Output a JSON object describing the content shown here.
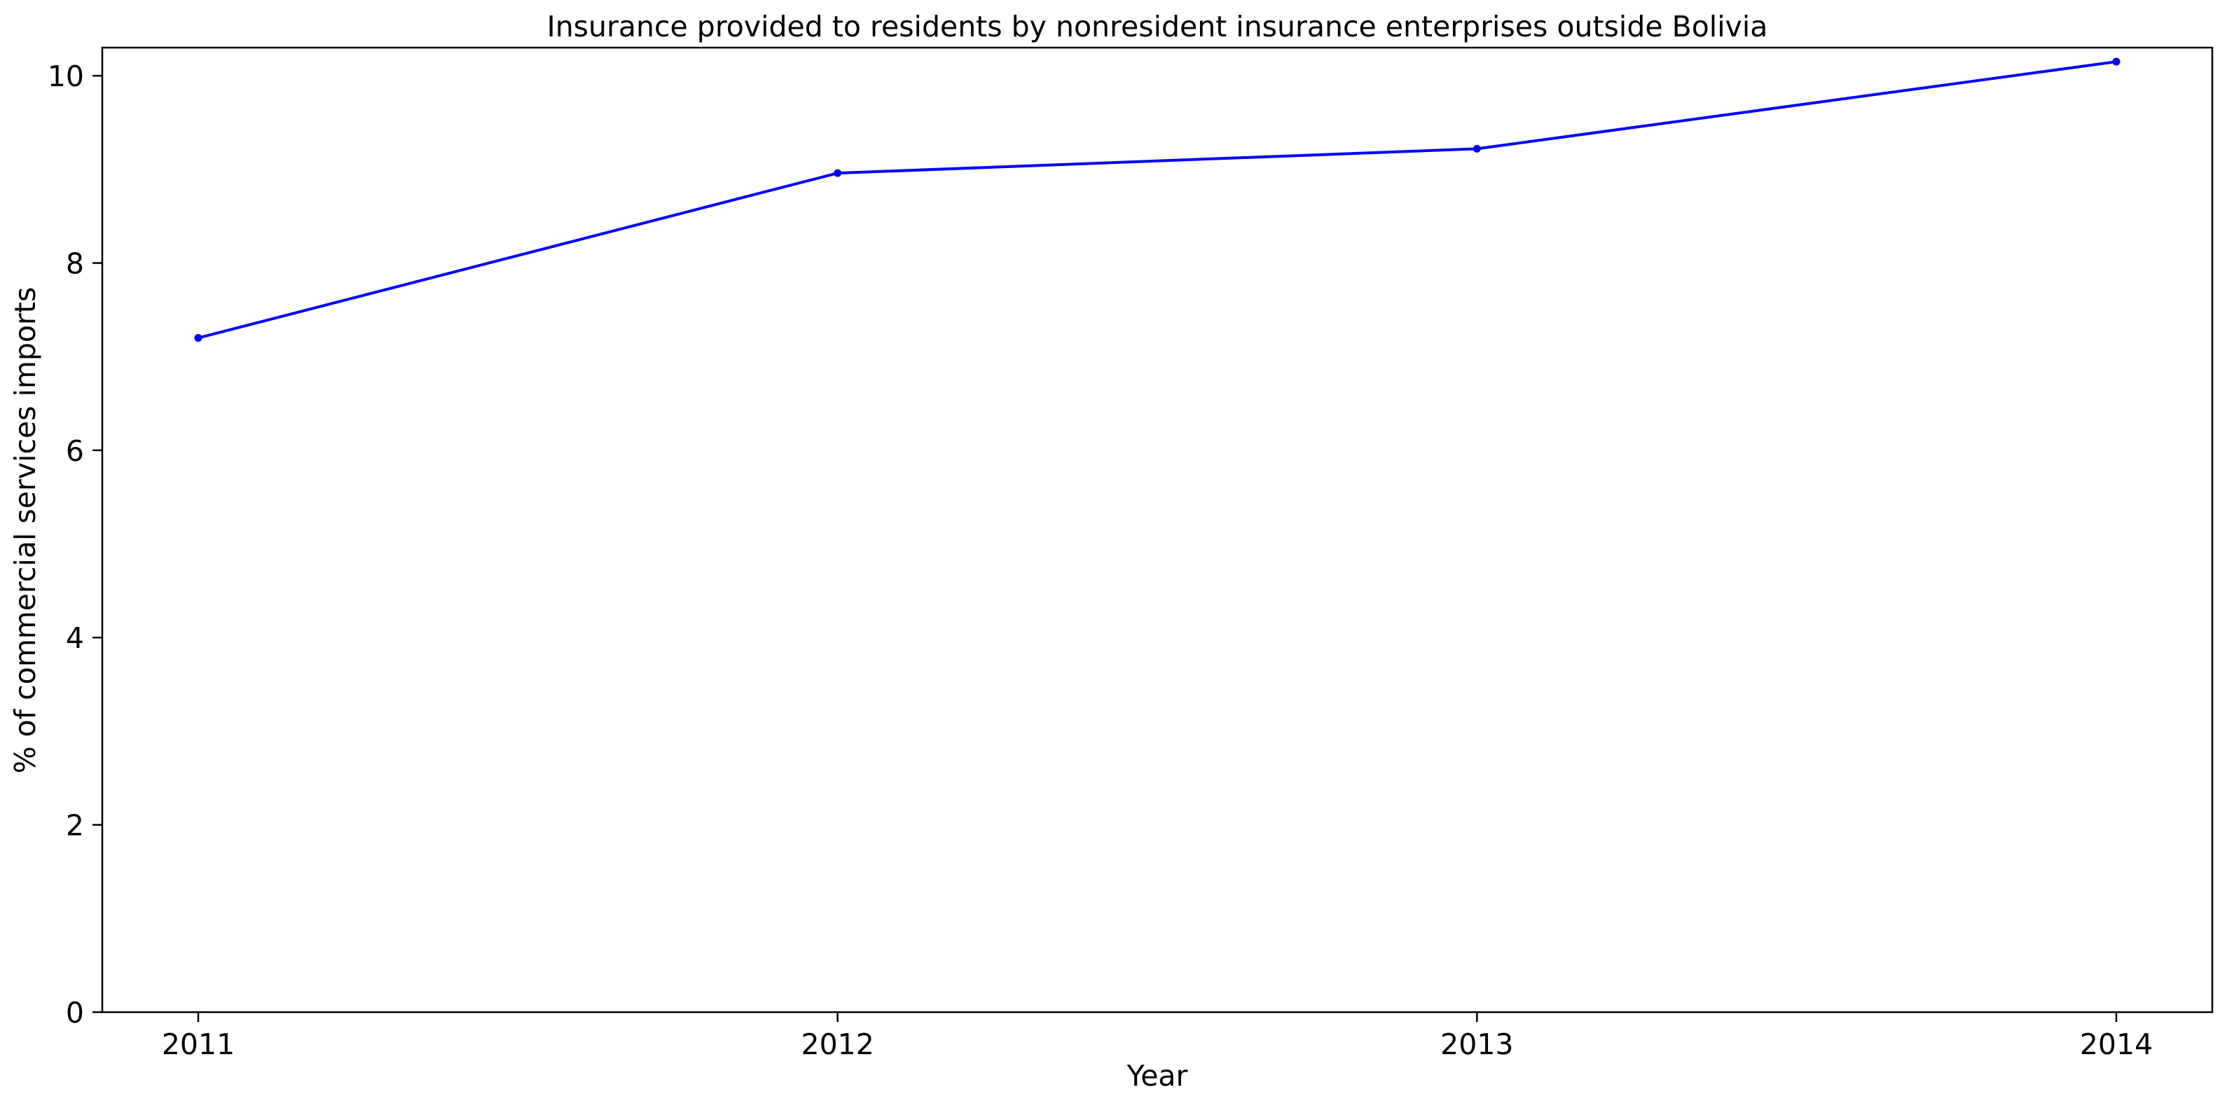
{
  "chart_data": {
    "type": "line",
    "title": "Insurance provided to residents by nonresident insurance enterprises outside Bolivia",
    "xlabel": "Year",
    "ylabel": "% of commercial services imports",
    "x": [
      "2011",
      "2012",
      "2013",
      "2014"
    ],
    "series": [
      {
        "name": "",
        "values": [
          7.2,
          8.96,
          9.22,
          10.15
        ],
        "color": "#0000ff"
      }
    ],
    "ylim": [
      0,
      10.3
    ],
    "yticks": [
      0,
      2,
      4,
      6,
      8,
      10
    ],
    "grid": false,
    "legend": "none"
  }
}
